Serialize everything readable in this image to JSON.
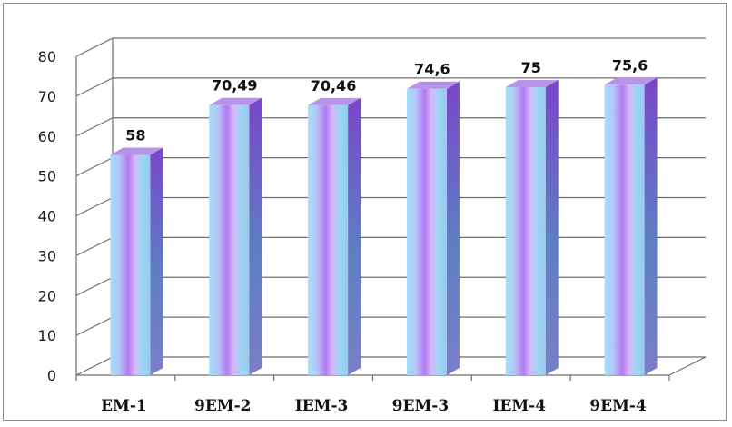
{
  "chart_data": {
    "type": "bar",
    "style": "3d-cylinder-bar",
    "categories": [
      "EM-1",
      "9EM-2",
      "IEM-3",
      "9EM-3",
      "IEM-4",
      "9EM-4"
    ],
    "values": [
      58,
      70.49,
      70.46,
      74.6,
      75,
      75.6
    ],
    "data_labels": [
      "58",
      "70,49",
      "70,46",
      "74,6",
      "75",
      "75,6"
    ],
    "y_ticks": [
      "0",
      "10",
      "20",
      "30",
      "40",
      "50",
      "60",
      "70",
      "80"
    ],
    "ylim": [
      0,
      80
    ],
    "grid": true,
    "legend": "none",
    "title": "",
    "xlabel": "",
    "ylabel": "",
    "colors": {
      "bar_light": "#a9e4fb",
      "bar_mid": "#c38cf5",
      "bar_dark": "#7b45c9",
      "bar_side": "#7f53c2",
      "bar_top": "#b694e6",
      "grid": "#6e6e6e"
    }
  }
}
